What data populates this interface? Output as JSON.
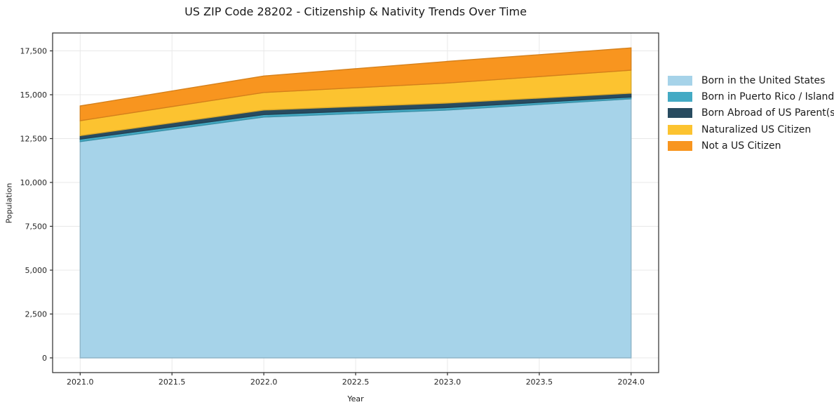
{
  "chart_data": {
    "type": "area",
    "stacked": true,
    "title": "US ZIP Code 28202 - Citizenship & Nativity Trends Over Time",
    "xlabel": "Year",
    "ylabel": "Population",
    "x": [
      2021,
      2022,
      2023,
      2024
    ],
    "series": [
      {
        "name": "Born in the United States",
        "color": "#A6D3E9",
        "values": [
          12330,
          13730,
          14130,
          14770
        ]
      },
      {
        "name": "Born in Puerto Rico / Islands",
        "color": "#43AAC4",
        "values": [
          140,
          140,
          140,
          100
        ]
      },
      {
        "name": "Born Abroad of US Parent(s)",
        "color": "#284B60",
        "values": [
          200,
          260,
          260,
          220
        ]
      },
      {
        "name": "Naturalized US Citizen",
        "color": "#FCC330",
        "values": [
          850,
          1000,
          1140,
          1310
        ]
      },
      {
        "name": "Not a US Citizen",
        "color": "#F8951F",
        "values": [
          840,
          940,
          1230,
          1270
        ]
      }
    ],
    "stacked_totals": [
      14360,
      16070,
      16900,
      17670
    ],
    "xlim": [
      2020.85,
      2024.15
    ],
    "ylim": [
      -840,
      18520
    ],
    "xticks": {
      "values": [
        2021.0,
        2021.5,
        2022.0,
        2022.5,
        2023.0,
        2023.5,
        2024.0
      ],
      "labels": [
        "2021.0",
        "2021.5",
        "2022.0",
        "2022.5",
        "2023.0",
        "2023.5",
        "2024.0"
      ]
    },
    "yticks": {
      "values": [
        0,
        2500,
        5000,
        7500,
        10000,
        12500,
        15000,
        17500
      ],
      "labels": [
        "0",
        "2,500",
        "5,000",
        "7,500",
        "10,000",
        "12,500",
        "15,000",
        "17,500"
      ]
    },
    "grid": true,
    "grid_color": "#e8e8e8",
    "spine_color": "#2b2b2b",
    "tick_text_color": "#262626",
    "legend_position": "right-outside"
  }
}
